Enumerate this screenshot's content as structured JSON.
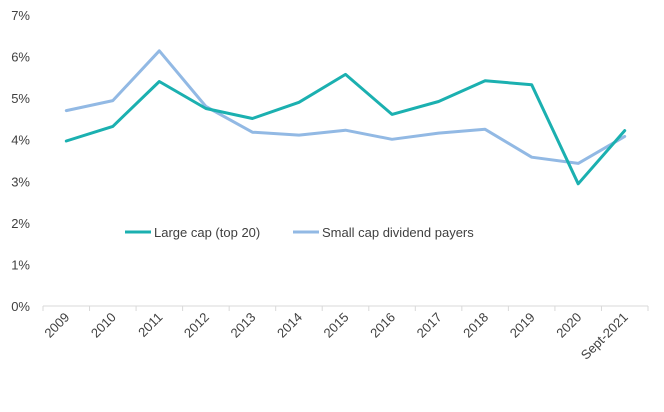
{
  "chart_data": {
    "type": "line",
    "title": "",
    "xlabel": "",
    "ylabel": "",
    "categories": [
      "2009",
      "2010",
      "2011",
      "2012",
      "2013",
      "2014",
      "2015",
      "2016",
      "2017",
      "2018",
      "2019",
      "2020",
      "Sept-2021"
    ],
    "ylim": [
      0,
      7
    ],
    "yticks": [
      0,
      1,
      2,
      3,
      4,
      5,
      6,
      7
    ],
    "ytick_labels": [
      "0%",
      "1%",
      "2%",
      "3%",
      "4%",
      "5%",
      "6%",
      "7%"
    ],
    "grid": false,
    "legend_position": "center",
    "series": [
      {
        "name": "Large cap (top 20)",
        "color": "#1BB0B0",
        "values": [
          3.97,
          4.32,
          5.4,
          4.75,
          4.51,
          4.9,
          5.57,
          4.61,
          4.92,
          5.42,
          5.32,
          2.94,
          4.22
        ]
      },
      {
        "name": "Small cap dividend payers",
        "color": "#92B9E4",
        "values": [
          4.7,
          4.94,
          6.14,
          4.8,
          4.18,
          4.11,
          4.23,
          4.01,
          4.16,
          4.25,
          3.58,
          3.43,
          4.08
        ]
      }
    ]
  }
}
